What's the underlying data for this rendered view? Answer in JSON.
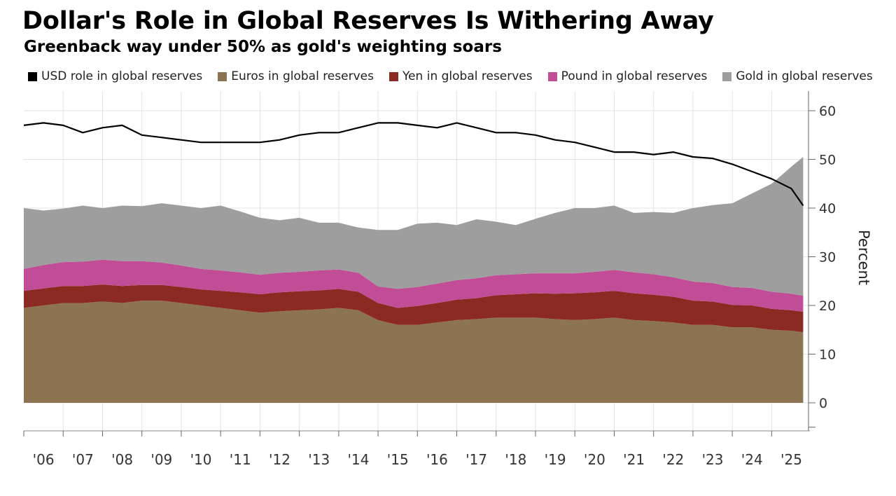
{
  "chart_data": {
    "type": "area",
    "title": "Dollar's Role in Global Reserves Is Withering Away",
    "subtitle": "Greenback way under 50% as gold's weighting soars",
    "ylabel": "Percent",
    "ylim": [
      -5,
      62
    ],
    "yticks": [
      0,
      10,
      20,
      30,
      40,
      50,
      60
    ],
    "xlim": [
      2006.0,
      2025.9
    ],
    "x_tick_labels": [
      "'06",
      "'07",
      "'08",
      "'09",
      "'10",
      "'11",
      "'12",
      "'13",
      "'14",
      "'15",
      "'16",
      "'17",
      "'18",
      "'19",
      "'20",
      "'21",
      "'22",
      "'23",
      "'24",
      "'25"
    ],
    "grid": true,
    "legend_position": "top",
    "stacking": "Euros, Yen, Pound and Gold stacked as areas; USD drawn as a line",
    "x": [
      2006.0,
      2006.5,
      2007.0,
      2007.5,
      2008.0,
      2008.5,
      2009.0,
      2009.5,
      2010.0,
      2010.5,
      2011.0,
      2011.5,
      2012.0,
      2012.5,
      2013.0,
      2013.5,
      2014.0,
      2014.5,
      2015.0,
      2015.5,
      2016.0,
      2016.5,
      2017.0,
      2017.5,
      2018.0,
      2018.5,
      2019.0,
      2019.5,
      2020.0,
      2020.5,
      2021.0,
      2021.5,
      2022.0,
      2022.5,
      2023.0,
      2023.5,
      2024.0,
      2024.5,
      2025.0,
      2025.5,
      2025.8
    ],
    "series": [
      {
        "name": "USD role in global reserves",
        "kind": "line",
        "color": "#000000",
        "values": [
          57,
          57.5,
          57,
          55.5,
          56.5,
          57,
          55,
          54.5,
          54,
          53.5,
          53.5,
          53.5,
          53.5,
          54,
          55,
          55.5,
          55.5,
          56.5,
          57.5,
          57.5,
          57,
          56.5,
          57.5,
          56.5,
          55.5,
          55.5,
          55,
          54,
          53.5,
          52.5,
          51.5,
          51.5,
          51,
          51.5,
          50.5,
          50.2,
          49,
          47.5,
          46,
          44,
          40.5
        ]
      },
      {
        "name": "Euros in global reserves",
        "kind": "area",
        "color": "#8c7352",
        "values": [
          19.5,
          20,
          20.5,
          20.5,
          20.8,
          20.5,
          21,
          21,
          20.5,
          20,
          19.5,
          19,
          18.5,
          18.8,
          19,
          19.2,
          19.5,
          19,
          17,
          16,
          16,
          16.5,
          17,
          17.2,
          17.5,
          17.5,
          17.5,
          17.2,
          17,
          17.2,
          17.5,
          17,
          16.8,
          16.5,
          16,
          16,
          15.5,
          15.5,
          15,
          14.8,
          14.5
        ]
      },
      {
        "name": "Yen in global reserves",
        "kind": "area",
        "color": "#8a2a22",
        "values": [
          3.5,
          3.5,
          3.5,
          3.5,
          3.5,
          3.5,
          3.2,
          3.2,
          3.3,
          3.3,
          3.5,
          3.7,
          3.8,
          3.9,
          3.9,
          3.9,
          3.9,
          3.8,
          3.5,
          3.5,
          3.9,
          4,
          4.2,
          4.3,
          4.6,
          4.8,
          5,
          5.2,
          5.5,
          5.5,
          5.5,
          5.5,
          5.4,
          5.3,
          5,
          4.8,
          4.6,
          4.5,
          4.3,
          4.2,
          4.2
        ]
      },
      {
        "name": "Pound in global reserves",
        "kind": "area",
        "color": "#c24d97",
        "values": [
          4.5,
          4.8,
          4.9,
          5,
          5.1,
          5.1,
          4.9,
          4.6,
          4.4,
          4.2,
          4.2,
          4.1,
          4,
          4,
          4,
          4.1,
          4,
          3.9,
          3.4,
          3.9,
          3.9,
          4,
          4,
          4.1,
          4.1,
          4.1,
          4.1,
          4.2,
          4.1,
          4.2,
          4.3,
          4.3,
          4.2,
          4,
          3.9,
          3.8,
          3.7,
          3.6,
          3.5,
          3.4,
          3.3
        ]
      },
      {
        "name": "Gold in global reserves",
        "kind": "area",
        "color": "#9e9e9e",
        "values": [
          12.5,
          11.2,
          11,
          11.5,
          10.6,
          11.4,
          11.3,
          12.2,
          12.3,
          12.5,
          13.3,
          12.5,
          11.7,
          10.8,
          11.1,
          9.8,
          9.6,
          9.3,
          11.6,
          12.1,
          13,
          12.5,
          11.3,
          12.1,
          11,
          10.1,
          11.2,
          12.4,
          13.4,
          13.1,
          13.2,
          12.2,
          12.8,
          13.2,
          15.1,
          16,
          17.2,
          19.4,
          22.2,
          26.1,
          28.5
        ]
      }
    ]
  }
}
